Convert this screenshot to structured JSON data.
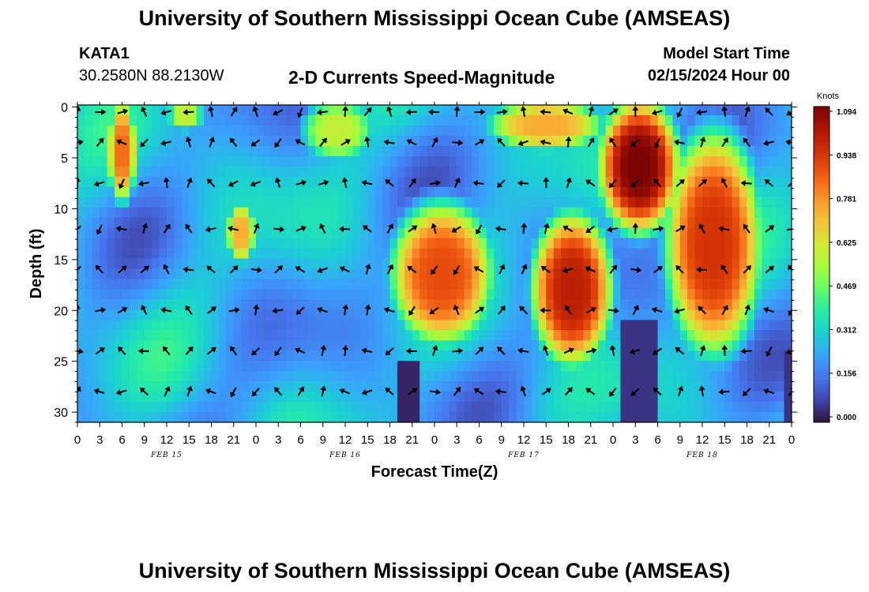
{
  "header": {
    "title": "University of Southern Mississippi Ocean Cube (AMSEAS)",
    "station": "KATA1",
    "coords": "30.2580N  88.2130W",
    "subtitle": "2-D Currents Speed-Magnitude",
    "model_start_label": "Model Start Time",
    "model_start_value": "02/15/2024 Hour 00"
  },
  "footer": {
    "title": "University of Southern Mississippi Ocean Cube (AMSEAS)"
  },
  "chart_data": {
    "type": "heatmap",
    "title": "2-D Currents Speed-Magnitude",
    "xlabel": "Forecast Time(Z)",
    "ylabel": "Depth (ft)",
    "x_hours_range": [
      0,
      96
    ],
    "ylim": [
      0,
      31
    ],
    "x_tick_labels": [
      "0",
      "3",
      "6",
      "9",
      "12",
      "15",
      "18",
      "21",
      "0",
      "3",
      "6",
      "9",
      "12",
      "15",
      "18",
      "21",
      "0",
      "3",
      "6",
      "9",
      "12",
      "15",
      "18",
      "21",
      "0",
      "3",
      "6",
      "9",
      "12",
      "15",
      "18",
      "21",
      "0"
    ],
    "y_ticks": [
      0,
      5,
      10,
      15,
      20,
      25,
      30
    ],
    "date_labels": [
      {
        "label": "FEB 15",
        "hour": 12
      },
      {
        "label": "FEB 16",
        "hour": 36
      },
      {
        "label": "FEB 17",
        "hour": 60
      },
      {
        "label": "FEB 18",
        "hour": 84
      }
    ],
    "colorbar": {
      "unit": "Knots",
      "ticks": [
        "1.094",
        "0.938",
        "0.781",
        "0.625",
        "0.469",
        "0.312",
        "0.156",
        "0.000"
      ],
      "min": 0.0,
      "max": 1.094
    },
    "arrow_rows_depth_ft": [
      0.5,
      3.5,
      7.5,
      12,
      16,
      20,
      24,
      28
    ],
    "high_speed_regions": [
      {
        "hours": [
          4,
          8
        ],
        "depth_ft": [
          0,
          9
        ],
        "peak_knots": 0.85
      },
      {
        "hours": [
          12,
          17
        ],
        "depth_ft": [
          0,
          2
        ],
        "peak_knots": 0.6
      },
      {
        "hours": [
          20,
          24
        ],
        "depth_ft": [
          10,
          15
        ],
        "peak_knots": 0.75
      },
      {
        "hours": [
          30,
          40
        ],
        "depth_ft": [
          0,
          5
        ],
        "peak_knots": 0.6
      },
      {
        "hours": [
          42,
          56
        ],
        "depth_ft": [
          10,
          23
        ],
        "peak_knots": 0.9
      },
      {
        "hours": [
          55,
          71
        ],
        "depth_ft": [
          0,
          4
        ],
        "peak_knots": 0.75
      },
      {
        "hours": [
          61,
          72
        ],
        "depth_ft": [
          11,
          25
        ],
        "peak_knots": 1.0
      },
      {
        "hours": [
          70,
          81
        ],
        "depth_ft": [
          0,
          12
        ],
        "peak_knots": 1.094
      },
      {
        "hours": [
          79,
          92
        ],
        "depth_ft": [
          3,
          24
        ],
        "peak_knots": 0.95
      }
    ]
  }
}
